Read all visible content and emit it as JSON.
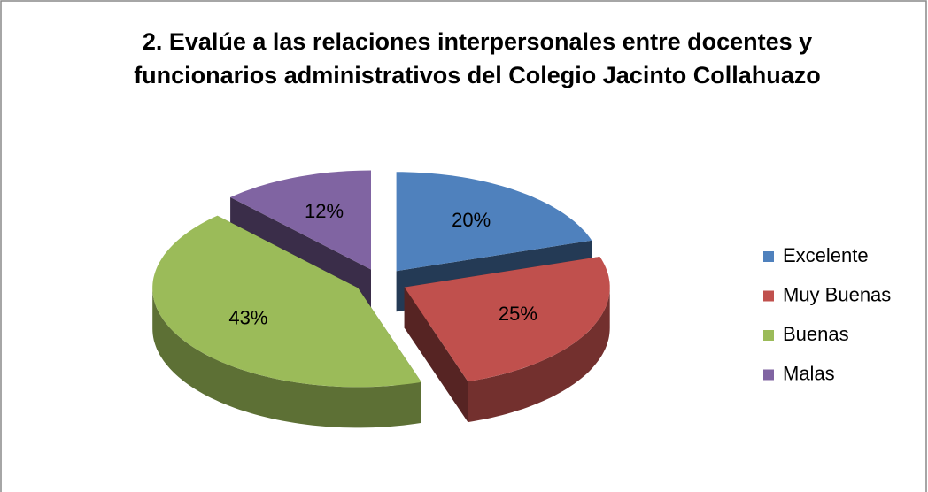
{
  "chart_data": {
    "type": "pie",
    "title": "2. Evalúe a las relaciones interpersonales entre docentes y funcionarios administrativos del Colegio Jacinto Collahuazo",
    "categories": [
      "Excelente",
      "Muy Buenas",
      "Buenas",
      "Malas"
    ],
    "values": [
      20,
      25,
      43,
      12
    ],
    "value_labels": [
      "20%",
      "25%",
      "43%",
      "12%"
    ],
    "colors": [
      "#4f81bd",
      "#c0504d",
      "#9bbb59",
      "#8064a2"
    ],
    "legend": "right"
  }
}
